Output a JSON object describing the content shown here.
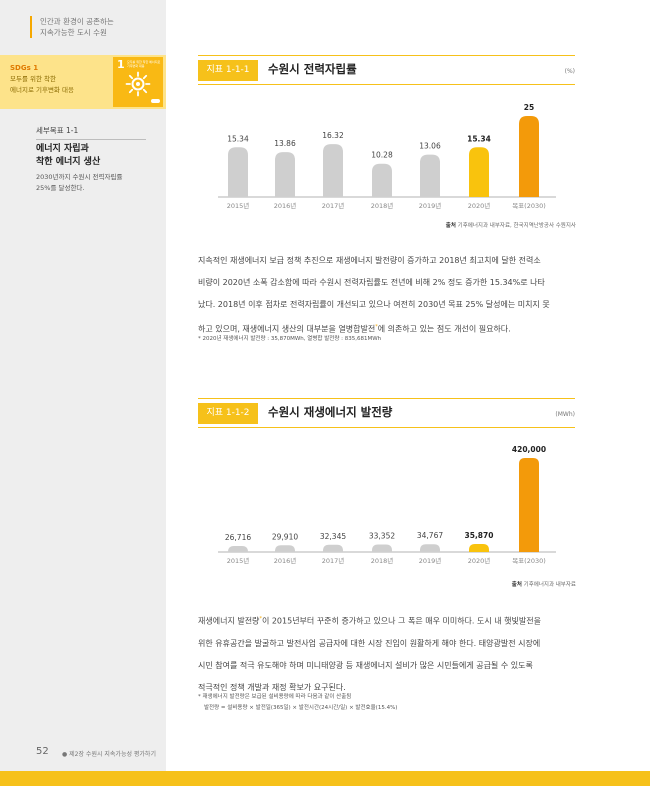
{
  "sidebar": {
    "tag_lines": [
      "인간과 환경이 공존하는",
      "지속가능한 도시 수원"
    ],
    "sdg": {
      "code": "SDGs 1",
      "lines": [
        "모두를 위한 착한",
        "에너지로 기후변화 대응"
      ],
      "box_number": "1",
      "box_title": "모두를 위한 착한 에너지로 기후변화 대응",
      "color": "#f9b914"
    },
    "target": {
      "code": "세부목표 1-1",
      "title_lines": [
        "에너지 자립과",
        "착한 에너지 생산"
      ],
      "desc_lines": [
        "2030년까지 수원시 전력자립률",
        "25%를 달성한다."
      ]
    }
  },
  "footer": {
    "page_number": "52",
    "chapter": "제2장 수원시 지속가능성 평가하기"
  },
  "chart1": {
    "tag": "지표 1-1-1",
    "title": "수원시 전력자립률",
    "unit": "(%)",
    "source_label": "출처",
    "source": "기후에너지과 내부자료, 한국지역난방공사 수원지사",
    "chart_data": {
      "type": "bar",
      "categories": [
        "2015년",
        "2016년",
        "2017년",
        "2018년",
        "2019년",
        "2020년",
        "목표(2030)"
      ],
      "values": [
        15.34,
        13.86,
        16.32,
        10.28,
        13.06,
        15.34,
        25
      ],
      "value_labels": [
        "15.34",
        "13.86",
        "16.32",
        "10.28",
        "13.06",
        "15.34",
        "25"
      ],
      "ylim": [
        0,
        25
      ],
      "colors": [
        "#cfcfcf",
        "#cfcfcf",
        "#cfcfcf",
        "#cfcfcf",
        "#cfcfcf",
        "#f9c30d",
        "#f39a0a"
      ],
      "bold_labels": [
        false,
        false,
        false,
        false,
        false,
        true,
        true
      ]
    }
  },
  "para1": {
    "lines": [
      "지속적인 재생에너지 보급 정책 추진으로 재생에너지 발전량이 증가하고 2018년 최고치에 달한 전력소",
      "비량이 2020년 소폭 감소함에 따라 수원시 전력자립률도 전년에 비해 2% 정도 증가한 15.34%로 나타",
      "났다. 2018년 이후 점차로 전력자립률이 개선되고 있으나 여전히 2030년 목표 25% 달성에는 미치지 못",
      "하고 있으며, 재생에너지 생산의 대부분을 열병합발전"
    ],
    "line4_sup": "*",
    "line4_tail": "에 의존하고 있는 점도 개선이 필요하다.",
    "note": "* 2020년 재생에너지 발전량 : 35,870MWh, 열병합 발전량 : 835,681MWh"
  },
  "chart2": {
    "tag": "지표 1-1-2",
    "title": "수원시 재생에너지 발전량",
    "unit": "(MWh)",
    "source_label": "출처",
    "source": "기후에너지과 내부자료",
    "chart_data": {
      "type": "bar",
      "categories": [
        "2015년",
        "2016년",
        "2017년",
        "2018년",
        "2019년",
        "2020년",
        "목표(2030)"
      ],
      "values": [
        26716,
        29910,
        32345,
        33352,
        34767,
        35870,
        420000
      ],
      "value_labels": [
        "26,716",
        "29,910",
        "32,345",
        "33,352",
        "34,767",
        "35,870",
        "420,000"
      ],
      "ylim": [
        0,
        420000
      ],
      "colors": [
        "#cfcfcf",
        "#cfcfcf",
        "#cfcfcf",
        "#cfcfcf",
        "#cfcfcf",
        "#f9c30d",
        "#f39a0a"
      ],
      "bold_labels": [
        false,
        false,
        false,
        false,
        false,
        true,
        true
      ]
    }
  },
  "para2": {
    "line1_head": "재생에너지 발전량",
    "line1_sup": "*",
    "line1_tail": "이 2015년부터 꾸준히 증가하고 있으나 그 폭은 매우 미미하다. 도시 내 햇빛발전을",
    "lines": [
      "위한 유휴공간을 발굴하고 발전사업 공급자에 대한 시장 진입이 원활하게 해야 한다. 태양광발전 시장에",
      "시민 참여를 적극 유도해야 하며 미니태양광 등 재생에너지 설비가 많은 시민들에게 공급될 수 있도록",
      "적극적인 정책 개발과 재정 확보가 요구된다."
    ],
    "note1": "* 재생에너지 발전량은 보급된 설비용량에 따라 다음과 같이 산출됨",
    "note2": "발전량 = 설비용량 × 발전일(365일) × 발전시간(24시간/일) × 발전효율(15.4%)"
  }
}
